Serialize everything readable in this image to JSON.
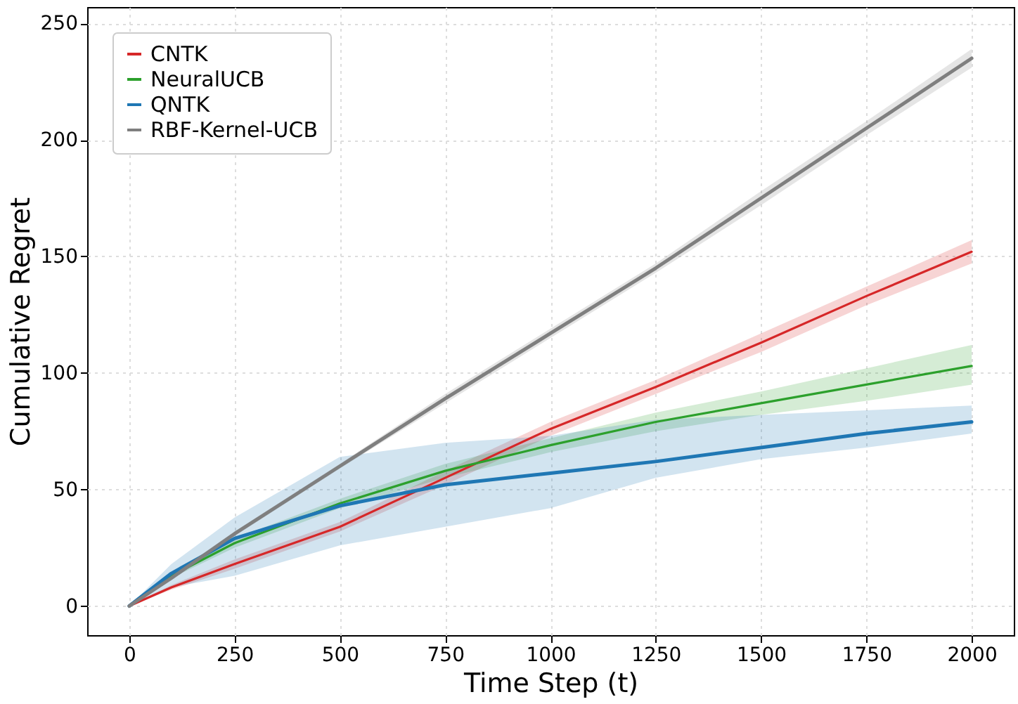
{
  "chart_data": {
    "type": "line",
    "xlabel": "Time Step (t)",
    "ylabel": "Cumulative Regret",
    "x": [
      0,
      100,
      250,
      500,
      750,
      1000,
      1250,
      1500,
      1750,
      2000
    ],
    "series": [
      {
        "name": "CNTK",
        "color": "#d62728",
        "values": [
          0,
          8,
          18,
          34,
          55,
          76,
          94,
          113,
          133,
          152
        ],
        "lower": [
          0,
          7,
          16,
          32,
          52,
          73,
          91,
          109,
          129,
          147
        ],
        "upper": [
          0,
          9,
          20,
          36,
          58,
          79,
          97,
          117,
          137,
          157
        ]
      },
      {
        "name": "NeuralUCB",
        "color": "#2ca02c",
        "values": [
          0,
          13,
          27,
          44,
          58,
          69,
          79,
          87,
          95,
          103
        ],
        "lower": [
          0,
          12,
          25,
          42,
          55,
          66,
          75,
          82,
          88,
          95
        ],
        "upper": [
          0,
          14,
          29,
          46,
          61,
          72,
          83,
          92,
          102,
          112
        ]
      },
      {
        "name": "QNTK",
        "color": "#1f77b4",
        "values": [
          0,
          14,
          29,
          43,
          52,
          57,
          62,
          68,
          74,
          79
        ],
        "lower": [
          0,
          8,
          13,
          26,
          34,
          42,
          55,
          63,
          68,
          74
        ],
        "upper": [
          0,
          18,
          38,
          64,
          70,
          73,
          80,
          82,
          84,
          86
        ]
      },
      {
        "name": "RBF-Kernel-UCB",
        "color": "#7f7f7f",
        "values": [
          0,
          12,
          31,
          60,
          89,
          117,
          145,
          175,
          205,
          235
        ],
        "lower": [
          0,
          11,
          30,
          59,
          87,
          115,
          143,
          172,
          202,
          231
        ],
        "upper": [
          0,
          13,
          32,
          61,
          91,
          119,
          147,
          178,
          208,
          239
        ]
      }
    ],
    "xlim": [
      -100,
      2100
    ],
    "ylim": [
      -12.5,
      257
    ],
    "xticks": [
      0,
      250,
      500,
      750,
      1000,
      1250,
      1500,
      1750,
      2000
    ],
    "yticks": [
      0,
      50,
      100,
      150,
      200,
      250
    ],
    "grid": true,
    "legend": "top left",
    "marker": "none",
    "line_style": "solid"
  }
}
